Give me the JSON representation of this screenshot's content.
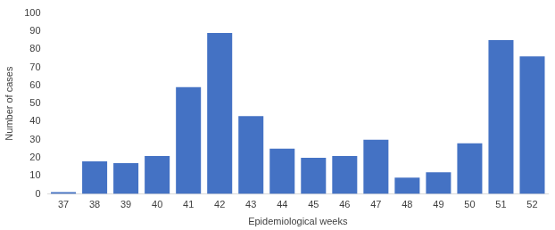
{
  "chart_data": {
    "type": "bar",
    "x_label": "Epidemiological weeks",
    "y_label": "Number of cases",
    "categories": [
      "37",
      "38",
      "39",
      "40",
      "41",
      "42",
      "43",
      "44",
      "45",
      "46",
      "47",
      "48",
      "49",
      "50",
      "51",
      "52"
    ],
    "values": [
      1,
      18,
      17,
      21,
      59,
      89,
      43,
      25,
      20,
      21,
      30,
      9,
      12,
      28,
      85,
      76
    ],
    "color": "#4472c4",
    "ylim": [
      0,
      100
    ],
    "yticks": [
      0,
      10,
      20,
      30,
      40,
      50,
      60,
      70,
      80,
      90,
      100
    ],
    "grid": false
  }
}
